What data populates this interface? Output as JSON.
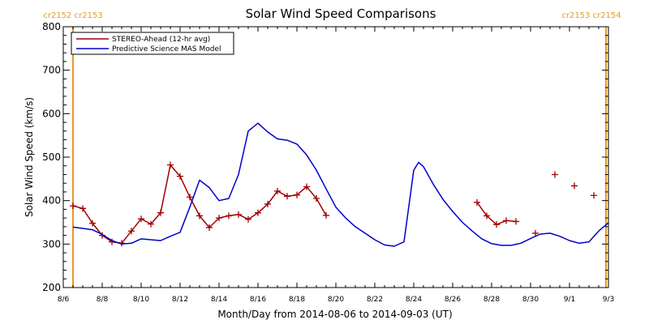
{
  "chart_data": {
    "type": "line",
    "title": "Solar Wind Speed Comparisons",
    "xlabel": "Month/Day from 2014-08-06 to 2014-09-03 (UT)",
    "ylabel": "Solar Wind Speed (km/s)",
    "xlim": [
      "2014-08-06",
      "2014-09-03"
    ],
    "ylim": [
      200,
      800
    ],
    "x_ticks": [
      {
        "date": "2014-08-06",
        "label": "8/6"
      },
      {
        "date": "2014-08-08",
        "label": "8/8"
      },
      {
        "date": "2014-08-10",
        "label": "8/10"
      },
      {
        "date": "2014-08-12",
        "label": "8/12"
      },
      {
        "date": "2014-08-14",
        "label": "8/14"
      },
      {
        "date": "2014-08-16",
        "label": "8/16"
      },
      {
        "date": "2014-08-18",
        "label": "8/18"
      },
      {
        "date": "2014-08-20",
        "label": "8/20"
      },
      {
        "date": "2014-08-22",
        "label": "8/22"
      },
      {
        "date": "2014-08-24",
        "label": "8/24"
      },
      {
        "date": "2014-08-26",
        "label": "8/26"
      },
      {
        "date": "2014-08-28",
        "label": "8/28"
      },
      {
        "date": "2014-08-30",
        "label": "8/30"
      },
      {
        "date": "2014-09-01",
        "label": "9/1"
      },
      {
        "date": "2014-09-03",
        "label": "9/3"
      }
    ],
    "y_ticks": [
      200,
      300,
      400,
      500,
      600,
      700,
      800
    ],
    "carrington_markers": [
      {
        "date": "2014-08-06 12:00",
        "label_left": "cr2152",
        "label_right": "cr2153",
        "color": "#e39a2c"
      },
      {
        "date": "2014-09-02 21:00",
        "label_left": "cr2153",
        "label_right": "cr2154",
        "color": "#e39a2c"
      }
    ],
    "legend": {
      "position": "top-left"
    },
    "series": [
      {
        "name": "STEREO-Ahead (12-hr avg)",
        "color": "#a00000",
        "marker": "+",
        "segments": [
          [
            [
              "2014-08-06 12:00",
              388
            ],
            [
              "2014-08-07 00:00",
              382
            ],
            [
              "2014-08-07 12:00",
              348
            ],
            [
              "2014-08-08 00:00",
              320
            ],
            [
              "2014-08-08 12:00",
              305
            ],
            [
              "2014-08-09 00:00",
              302
            ],
            [
              "2014-08-09 12:00",
              330
            ],
            [
              "2014-08-10 00:00",
              358
            ],
            [
              "2014-08-10 12:00",
              346
            ],
            [
              "2014-08-11 00:00",
              372
            ],
            [
              "2014-08-11 12:00",
              482
            ],
            [
              "2014-08-12 00:00",
              456
            ],
            [
              "2014-08-12 12:00",
              408
            ],
            [
              "2014-08-13 00:00",
              365
            ],
            [
              "2014-08-13 12:00",
              338
            ],
            [
              "2014-08-14 00:00",
              360
            ],
            [
              "2014-08-14 12:00",
              365
            ],
            [
              "2014-08-15 00:00",
              368
            ],
            [
              "2014-08-15 12:00",
              357
            ],
            [
              "2014-08-16 00:00",
              372
            ],
            [
              "2014-08-16 12:00",
              392
            ],
            [
              "2014-08-17 00:00",
              422
            ],
            [
              "2014-08-17 12:00",
              410
            ],
            [
              "2014-08-18 00:00",
              413
            ],
            [
              "2014-08-18 12:00",
              432
            ],
            [
              "2014-08-19 00:00",
              405
            ],
            [
              "2014-08-19 12:00",
              366
            ]
          ],
          [
            [
              "2014-08-27 06:00",
              396
            ],
            [
              "2014-08-27 18:00",
              365
            ],
            [
              "2014-08-28 06:00",
              345
            ],
            [
              "2014-08-28 18:00",
              354
            ],
            [
              "2014-08-29 06:00",
              352
            ]
          ]
        ],
        "isolated_points": [
          [
            "2014-08-30 06:00",
            325
          ],
          [
            "2014-08-31 06:00",
            460
          ],
          [
            "2014-09-01 06:00",
            434
          ],
          [
            "2014-09-02 06:00",
            412
          ]
        ]
      },
      {
        "name": "Predictive Science MAS Model",
        "color": "#0000cc",
        "segments": [
          [
            [
              "2014-08-06 12:00",
              339
            ],
            [
              "2014-08-07 00:00",
              336
            ],
            [
              "2014-08-07 12:00",
              333
            ],
            [
              "2014-08-08 00:00",
              322
            ],
            [
              "2014-08-08 12:00",
              308
            ],
            [
              "2014-08-09 00:00",
              300
            ],
            [
              "2014-08-09 12:00",
              302
            ],
            [
              "2014-08-10 00:00",
              312
            ],
            [
              "2014-08-10 12:00",
              310
            ],
            [
              "2014-08-11 00:00",
              308
            ],
            [
              "2014-08-11 12:00",
              318
            ],
            [
              "2014-08-12 00:00",
              327
            ],
            [
              "2014-08-12 12:00",
              385
            ],
            [
              "2014-08-13 00:00",
              447
            ],
            [
              "2014-08-13 12:00",
              430
            ],
            [
              "2014-08-14 00:00",
              400
            ],
            [
              "2014-08-14 12:00",
              405
            ],
            [
              "2014-08-15 00:00",
              460
            ],
            [
              "2014-08-15 12:00",
              560
            ],
            [
              "2014-08-16 00:00",
              578
            ],
            [
              "2014-08-16 12:00",
              558
            ],
            [
              "2014-08-17 00:00",
              542
            ],
            [
              "2014-08-17 12:00",
              539
            ],
            [
              "2014-08-18 00:00",
              530
            ],
            [
              "2014-08-18 12:00",
              505
            ],
            [
              "2014-08-19 00:00",
              470
            ],
            [
              "2014-08-19 12:00",
              427
            ],
            [
              "2014-08-20 00:00",
              385
            ],
            [
              "2014-08-20 12:00",
              360
            ],
            [
              "2014-08-21 00:00",
              340
            ],
            [
              "2014-08-21 12:00",
              325
            ],
            [
              "2014-08-22 00:00",
              310
            ],
            [
              "2014-08-22 12:00",
              298
            ],
            [
              "2014-08-23 00:00",
              295
            ],
            [
              "2014-08-23 12:00",
              305
            ],
            [
              "2014-08-24 00:00",
              470
            ],
            [
              "2014-08-24 06:00",
              488
            ],
            [
              "2014-08-24 12:00",
              478
            ],
            [
              "2014-08-25 00:00",
              438
            ],
            [
              "2014-08-25 12:00",
              403
            ],
            [
              "2014-08-26 00:00",
              375
            ],
            [
              "2014-08-26 12:00",
              350
            ],
            [
              "2014-08-27 00:00",
              330
            ],
            [
              "2014-08-27 12:00",
              312
            ],
            [
              "2014-08-28 00:00",
              301
            ],
            [
              "2014-08-28 12:00",
              297
            ],
            [
              "2014-08-29 00:00",
              297
            ],
            [
              "2014-08-29 12:00",
              302
            ],
            [
              "2014-08-30 00:00",
              313
            ],
            [
              "2014-08-30 12:00",
              323
            ],
            [
              "2014-08-31 00:00",
              325
            ],
            [
              "2014-08-31 12:00",
              318
            ],
            [
              "2014-09-01 00:00",
              308
            ],
            [
              "2014-09-01 12:00",
              302
            ],
            [
              "2014-09-02 00:00",
              305
            ],
            [
              "2014-09-02 12:00",
              330
            ],
            [
              "2014-09-03 00:00",
              349
            ]
          ]
        ]
      }
    ]
  }
}
